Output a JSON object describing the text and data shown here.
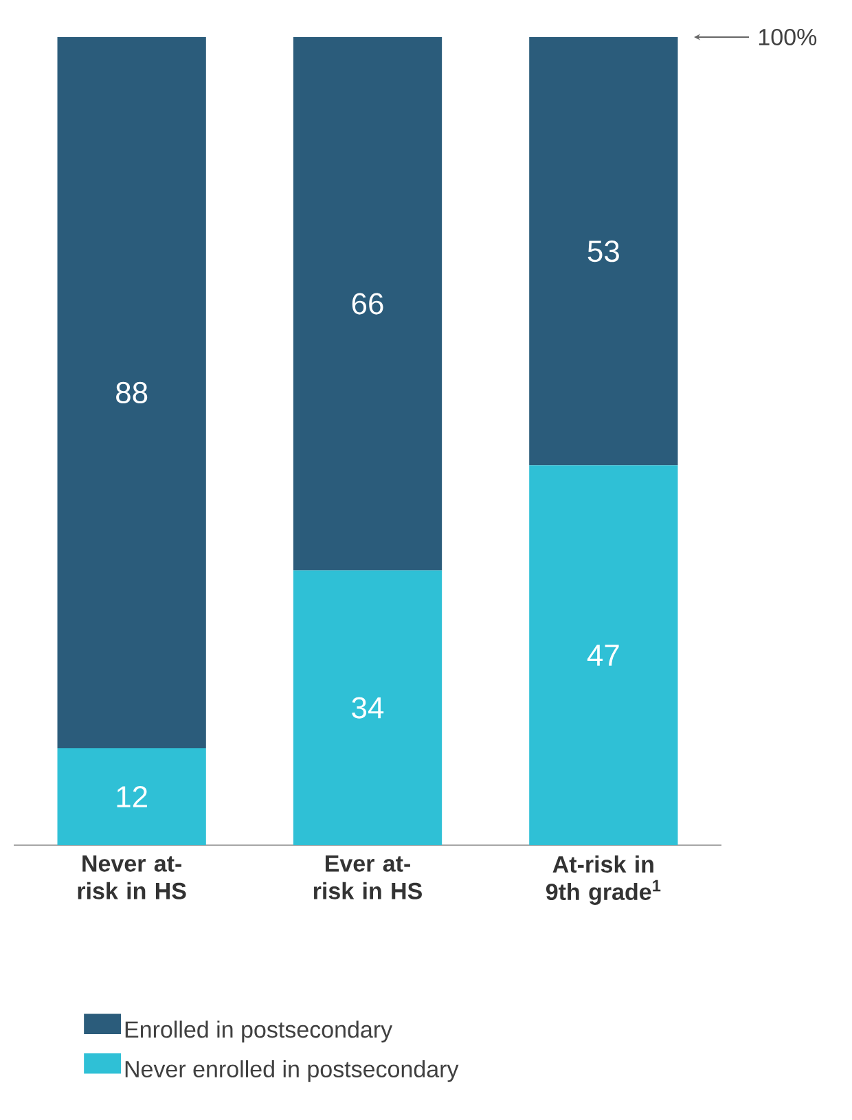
{
  "chart_data": {
    "type": "bar",
    "stacked": true,
    "categories": [
      "Never at-risk in HS",
      "Ever at-risk in HS",
      "At-risk in 9th grade$^{1}$"
    ],
    "series": [
      {
        "name": "Never enrolled in postsecondary",
        "color": "#2fc0d6",
        "values": [
          12,
          34,
          47
        ]
      },
      {
        "name": "Enrolled in postsecondary",
        "color": "#2b5c7b",
        "values": [
          88,
          66,
          53
        ]
      }
    ],
    "tick_labels": "x",
    "data_labels": true,
    "legend": "bottom",
    "ref_lines": [
      {
        "axis": "y",
        "value": 100,
        "label": "100%"
      }
    ]
  }
}
